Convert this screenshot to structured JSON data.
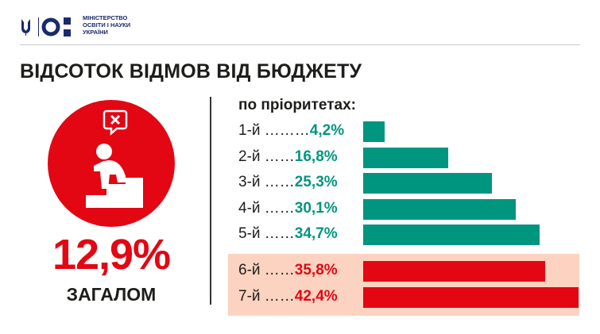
{
  "header": {
    "logo_text": [
      "МІНІСТЕРСТВО",
      "ОСВІТИ І НАУКИ",
      "УКРАЇНИ"
    ]
  },
  "title": "ВІДСОТОК ВІДМОВ ВІД БЮДЖЕТУ",
  "summary": {
    "value": "12,9%",
    "label": "ЗАГАЛОМ"
  },
  "colors": {
    "teal": "#00957f",
    "red": "#e30613",
    "pink": "#fbd3c0"
  },
  "chart_data": {
    "type": "bar",
    "orientation": "horizontal",
    "title": "по пріоритетах:",
    "categories": [
      "1-й",
      "2-й",
      "3-й",
      "4-й",
      "5-й",
      "6-й",
      "7-й"
    ],
    "dots": [
      "………",
      "……",
      "……",
      "……",
      "……",
      "……",
      "……"
    ],
    "values": [
      4.2,
      16.8,
      25.3,
      30.1,
      34.7,
      35.8,
      42.4
    ],
    "value_labels": [
      "4,2%",
      "16,8%",
      "25,3%",
      "30,1%",
      "34,7%",
      "35,8%",
      "42,4%"
    ],
    "highlighted": [
      false,
      false,
      false,
      false,
      false,
      true,
      true
    ],
    "xlim": [
      0,
      42.4
    ]
  }
}
